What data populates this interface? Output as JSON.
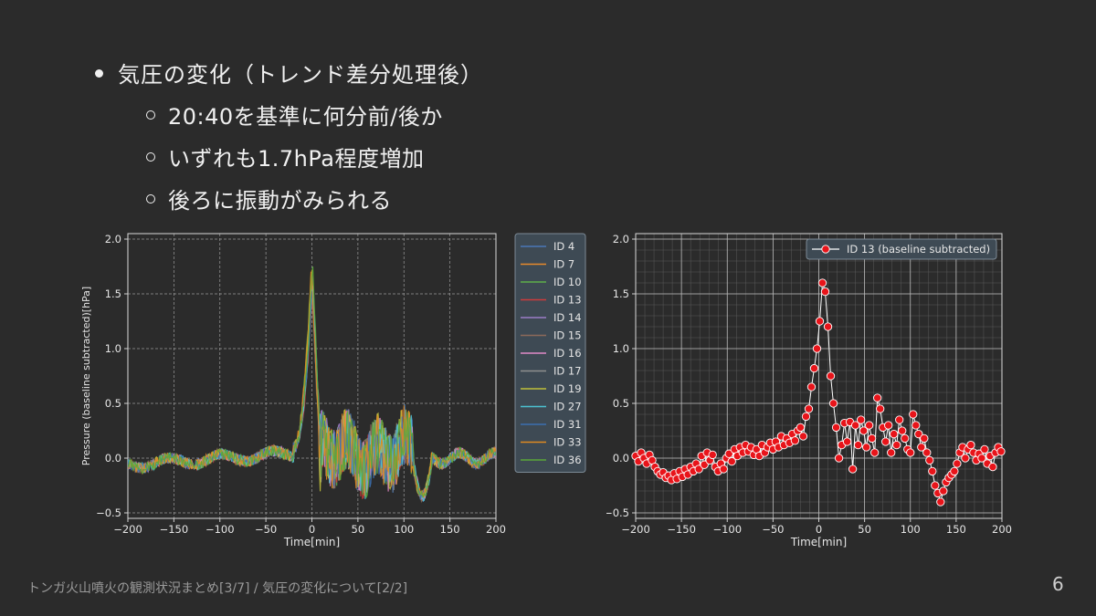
{
  "slide": {
    "bullet_main": "気圧の変化（トレンド差分処理後）",
    "sub_bullets": [
      "20:40を基準に何分前/後か",
      "いずれも1.7hPa程度増加",
      "後ろに振動がみられる"
    ],
    "footer": "トンガ火山噴火の観測状況まとめ[3/7] / 気圧の変化について[2/2]",
    "page_number": "6"
  },
  "chart_data": [
    {
      "type": "line",
      "title": "",
      "xlabel": "Time[min]",
      "ylabel": "Pressure (baseline subtracted)[hPa]",
      "xlim": [
        -200,
        200
      ],
      "ylim": [
        -0.55,
        2.05
      ],
      "xticks": [
        -200,
        -150,
        -100,
        -50,
        0,
        50,
        100,
        150,
        200
      ],
      "yticks": [
        -0.5,
        0.0,
        0.5,
        1.0,
        1.5,
        2.0
      ],
      "grid": "dashed",
      "legend_position": "outside-right",
      "series": [
        {
          "name": "ID 4",
          "color": "#4a78b8",
          "peak": 1.62
        },
        {
          "name": "ID 7",
          "color": "#e88a2a",
          "peak": 1.72
        },
        {
          "name": "ID 10",
          "color": "#5fae4a",
          "peak": 1.8
        },
        {
          "name": "ID 13",
          "color": "#cc3b3b",
          "peak": 1.58
        },
        {
          "name": "ID 14",
          "color": "#9b7cc7",
          "peak": 1.55
        },
        {
          "name": "ID 15",
          "color": "#8c6a5a",
          "peak": 1.6
        },
        {
          "name": "ID 16",
          "color": "#e08ac8",
          "peak": 1.66
        },
        {
          "name": "ID 17",
          "color": "#8f8f8f",
          "peak": 1.63
        },
        {
          "name": "ID 19",
          "color": "#bfbf3a",
          "peak": 1.7
        },
        {
          "name": "ID 27",
          "color": "#4cc1d1",
          "peak": 1.64
        },
        {
          "name": "ID 31",
          "color": "#3b6fb0",
          "peak": 1.57
        },
        {
          "name": "ID 33",
          "color": "#e08a20",
          "peak": 1.75
        },
        {
          "name": "ID 36",
          "color": "#5aa83a",
          "peak": 1.78
        }
      ]
    },
    {
      "type": "scatter",
      "title": "",
      "xlabel": "Time[min]",
      "ylabel": "",
      "xlim": [
        -200,
        200
      ],
      "ylim": [
        -0.55,
        2.05
      ],
      "xticks": [
        -200,
        -150,
        -100,
        -50,
        0,
        50,
        100,
        150,
        200
      ],
      "yticks": [
        -0.5,
        0.0,
        0.5,
        1.0,
        1.5,
        2.0
      ],
      "grid": "major+minor",
      "legend_position": "top-right",
      "series": [
        {
          "name": "ID 13 (baseline subtracted)",
          "marker_color": "#e8141a",
          "line_color": "#ffffff",
          "x": [
            -200,
            -197,
            -194,
            -191,
            -188,
            -185,
            -182,
            -179,
            -176,
            -173,
            -170,
            -167,
            -164,
            -161,
            -158,
            -155,
            -152,
            -149,
            -146,
            -143,
            -140,
            -137,
            -134,
            -131,
            -128,
            -125,
            -122,
            -119,
            -116,
            -113,
            -110,
            -107,
            -104,
            -101,
            -98,
            -95,
            -92,
            -89,
            -86,
            -83,
            -80,
            -77,
            -74,
            -71,
            -68,
            -65,
            -62,
            -59,
            -56,
            -53,
            -50,
            -47,
            -44,
            -41,
            -38,
            -35,
            -32,
            -29,
            -26,
            -23,
            -20,
            -17,
            -14,
            -11,
            -8,
            -5,
            -2,
            1,
            4,
            7,
            10,
            13,
            16,
            19,
            22,
            25,
            28,
            31,
            34,
            37,
            40,
            43,
            46,
            49,
            52,
            55,
            58,
            61,
            64,
            67,
            70,
            73,
            76,
            79,
            82,
            85,
            88,
            91,
            94,
            97,
            100,
            103,
            106,
            109,
            112,
            115,
            118,
            121,
            124,
            127,
            130,
            133,
            136,
            139,
            142,
            145,
            148,
            151,
            154,
            157,
            160,
            163,
            166,
            169,
            172,
            175,
            178,
            181,
            184,
            187,
            190,
            193,
            196,
            199
          ],
          "y": [
            0.02,
            -0.03,
            0.05,
            0.0,
            -0.05,
            0.03,
            -0.02,
            -0.08,
            -0.12,
            -0.15,
            -0.13,
            -0.18,
            -0.16,
            -0.2,
            -0.14,
            -0.19,
            -0.12,
            -0.17,
            -0.1,
            -0.15,
            -0.08,
            -0.12,
            -0.05,
            -0.1,
            0.02,
            -0.06,
            0.05,
            -0.02,
            0.03,
            -0.08,
            -0.12,
            -0.05,
            -0.1,
            0.0,
            0.04,
            -0.03,
            0.08,
            0.02,
            0.1,
            0.05,
            0.12,
            0.06,
            0.1,
            0.03,
            0.08,
            0.02,
            0.12,
            0.05,
            0.1,
            0.14,
            0.08,
            0.15,
            0.1,
            0.2,
            0.12,
            0.18,
            0.14,
            0.22,
            0.16,
            0.25,
            0.28,
            0.2,
            0.38,
            0.45,
            0.65,
            0.82,
            1.0,
            1.25,
            1.6,
            1.52,
            1.2,
            0.75,
            0.5,
            0.28,
            0.0,
            0.12,
            0.32,
            0.15,
            0.33,
            -0.1,
            0.3,
            0.12,
            0.35,
            0.25,
            0.1,
            0.3,
            0.18,
            0.05,
            0.55,
            0.45,
            0.28,
            0.15,
            0.3,
            0.05,
            0.22,
            0.12,
            0.35,
            0.25,
            0.18,
            0.08,
            0.05,
            0.4,
            0.3,
            0.22,
            0.1,
            0.18,
            0.05,
            -0.02,
            -0.12,
            -0.25,
            -0.32,
            -0.4,
            -0.3,
            -0.22,
            -0.18,
            -0.15,
            -0.12,
            -0.05,
            0.05,
            0.1,
            0.0,
            0.08,
            0.12,
            0.05,
            -0.02,
            0.04,
            0.0,
            0.08,
            -0.05,
            0.02,
            -0.08,
            0.05,
            0.1,
            0.06
          ]
        }
      ]
    }
  ]
}
